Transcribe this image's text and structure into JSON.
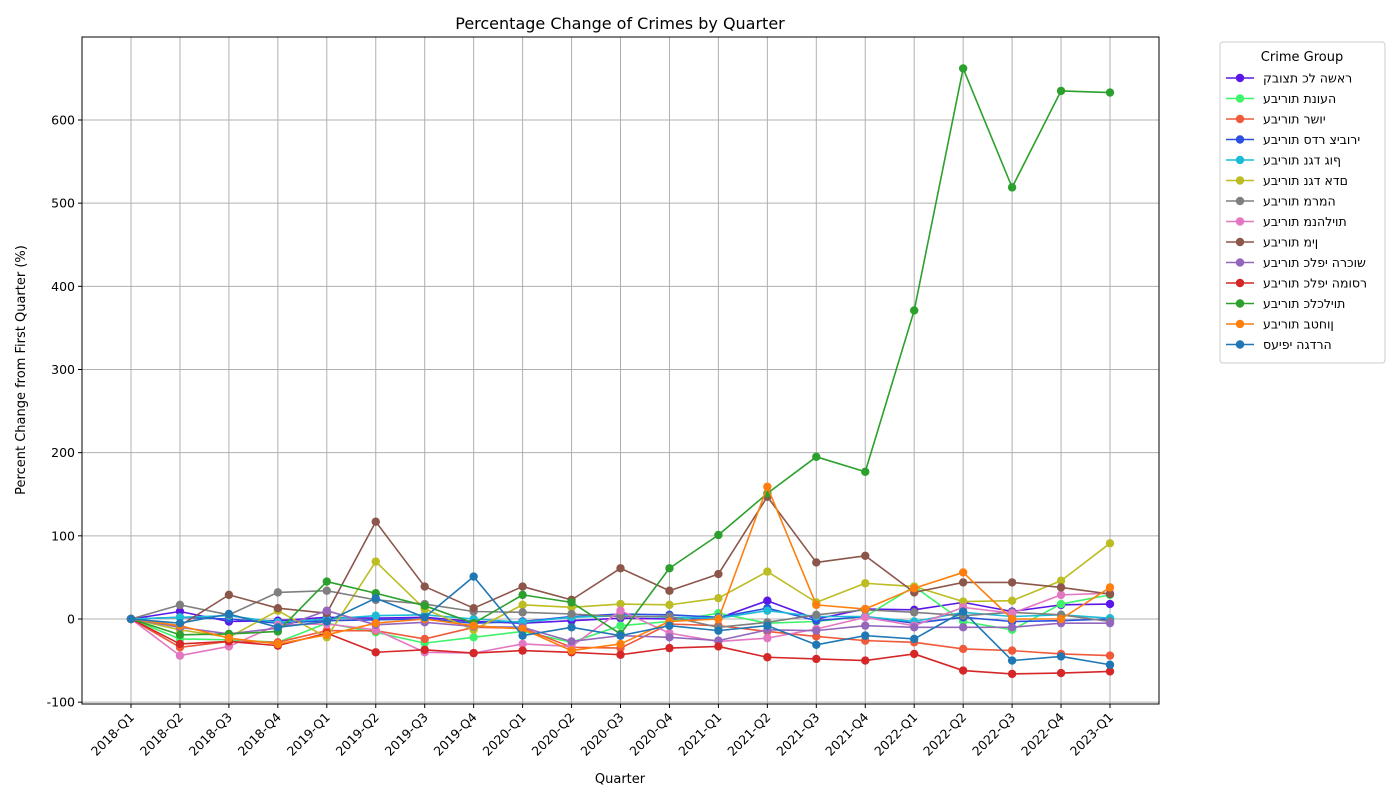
{
  "chart_data": {
    "type": "line",
    "title": "Percentage Change of Crimes by Quarter",
    "xlabel": "Quarter",
    "ylabel": "Percent Change from First Quarter (%)",
    "ylim": [
      -100,
      690
    ],
    "yticks": [
      -100,
      0,
      100,
      200,
      300,
      400,
      500,
      600
    ],
    "grid": true,
    "legend_title": "Crime Group",
    "legend_position": "outside-right-top",
    "categories": [
      "2018-Q1",
      "2018-Q2",
      "2018-Q3",
      "2018-Q4",
      "2019-Q1",
      "2019-Q2",
      "2019-Q3",
      "2019-Q4",
      "2020-Q1",
      "2020-Q2",
      "2020-Q3",
      "2020-Q4",
      "2021-Q1",
      "2021-Q2",
      "2021-Q3",
      "2021-Q4",
      "2022-Q1",
      "2022-Q2",
      "2022-Q3",
      "2022-Q4",
      "2023-Q1"
    ],
    "series": [
      {
        "name": "ראשה לכ תצובק",
        "color": "#5b16e8",
        "values": [
          0,
          9,
          -3,
          -2,
          2,
          1,
          2,
          -3,
          -5,
          -2,
          1,
          0,
          1,
          22,
          0,
          12,
          11,
          20,
          9,
          17,
          18
        ]
      },
      {
        "name": "העונת תוריבע",
        "color": "#3ef26a",
        "values": [
          0,
          -24,
          -25,
          -28,
          -5,
          -16,
          -29,
          -22,
          -15,
          -28,
          -8,
          -3,
          7,
          -5,
          -3,
          3,
          39,
          -3,
          -13,
          18,
          29
        ]
      },
      {
        "name": "יושר תוריבע",
        "color": "#ef5a3a",
        "values": [
          0,
          -34,
          -27,
          -28,
          -14,
          -14,
          -24,
          -10,
          -11,
          -34,
          -35,
          -6,
          -8,
          -15,
          -21,
          -26,
          -28,
          -36,
          -38,
          -42,
          -44
        ]
      },
      {
        "name": "ירוביצ רדס תוריבע",
        "color": "#2c50e0",
        "values": [
          0,
          2,
          0,
          -5,
          -2,
          -1,
          0,
          -5,
          -3,
          3,
          6,
          5,
          2,
          13,
          -2,
          3,
          -5,
          2,
          -3,
          -2,
          0
        ]
      },
      {
        "name": "ףוג דגנ תוריבע",
        "color": "#1cbcd6",
        "values": [
          0,
          2,
          4,
          -4,
          0,
          4,
          5,
          0,
          -4,
          2,
          4,
          2,
          1,
          10,
          3,
          3,
          -3,
          8,
          3,
          5,
          1
        ]
      },
      {
        "name": "םדא דגנ תוריבע",
        "color": "#bcbd22",
        "values": [
          0,
          -13,
          -22,
          10,
          -22,
          69,
          12,
          -13,
          17,
          14,
          18,
          17,
          25,
          57,
          20,
          43,
          39,
          21,
          22,
          46,
          91
        ]
      },
      {
        "name": "המרמ תוריבע",
        "color": "#7f7f7f",
        "values": [
          0,
          17,
          5,
          32,
          34,
          23,
          18,
          9,
          8,
          6,
          3,
          3,
          -10,
          -4,
          5,
          11,
          8,
          4,
          8,
          5,
          -3
        ]
      },
      {
        "name": "תוילהנמ תוריבע",
        "color": "#e377c2",
        "values": [
          0,
          -44,
          -33,
          -7,
          -6,
          -13,
          -40,
          -41,
          -30,
          -33,
          10,
          -17,
          -27,
          -23,
          -12,
          2,
          -8,
          14,
          7,
          29,
          31
        ]
      },
      {
        "name": "ןימ תוריבע",
        "color": "#8c564b",
        "values": [
          0,
          -8,
          29,
          13,
          7,
          117,
          39,
          13,
          39,
          23,
          61,
          34,
          54,
          147,
          68,
          76,
          32,
          44,
          44,
          38,
          30
        ]
      },
      {
        "name": "שוכרה יפלכ תוריבע",
        "color": "#9467bd",
        "values": [
          0,
          -10,
          -18,
          -11,
          10,
          -7,
          -4,
          -9,
          -10,
          -27,
          -20,
          -22,
          -26,
          -13,
          -14,
          -8,
          -10,
          -10,
          -10,
          -5,
          -5
        ]
      },
      {
        "name": "רסומה יפלכ תוריבע",
        "color": "#d62728",
        "values": [
          0,
          -30,
          -27,
          -32,
          -17,
          -40,
          -37,
          -41,
          -38,
          -40,
          -43,
          -35,
          -33,
          -46,
          -48,
          -50,
          -42,
          -62,
          -66,
          -65,
          -63
        ]
      },
      {
        "name": "תוילכלכ תוריבע",
        "color": "#2ca02c",
        "values": [
          0,
          -19,
          -18,
          -15,
          45,
          31,
          16,
          -5,
          29,
          20,
          -18,
          61,
          101,
          151,
          195,
          177,
          371,
          662,
          519,
          635,
          633
        ]
      },
      {
        "name": "ןוחטב תוריבע",
        "color": "#ff7f0e",
        "values": [
          0,
          -8,
          -23,
          -30,
          -19,
          -5,
          0,
          -8,
          -12,
          -38,
          -30,
          -3,
          0,
          159,
          17,
          12,
          37,
          56,
          0,
          0,
          38
        ]
      },
      {
        "name": "הרדגה יפיעס",
        "color": "#1f77b4",
        "values": [
          0,
          -5,
          6,
          -10,
          -3,
          25,
          2,
          51,
          -20,
          -10,
          -20,
          -8,
          -14,
          -8,
          -31,
          -20,
          -24,
          9,
          -50,
          -45,
          -55
        ]
      }
    ]
  }
}
